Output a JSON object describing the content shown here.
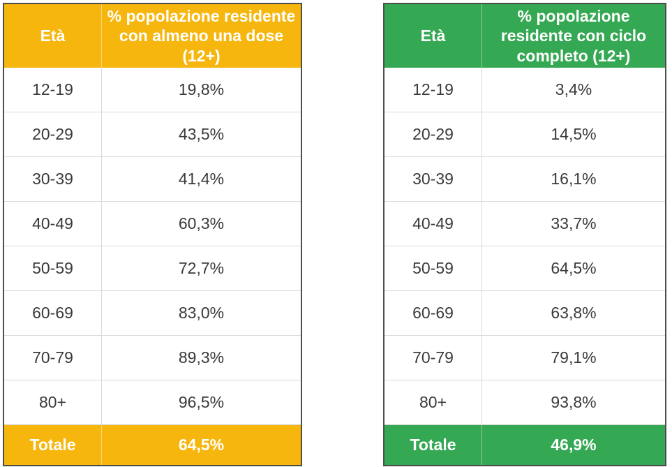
{
  "page": {
    "background": "#ffffff",
    "border_dark": "#4d4d4d",
    "grid_light": "#d9d9d9",
    "body_text": "#3a3a3a"
  },
  "tables": [
    {
      "name": "one-dose",
      "accent": "#F6B60D",
      "header": {
        "age_label": "Età",
        "value_label": "% popolazione residente con almeno una dose (12+)"
      },
      "rows": [
        {
          "age": "12-19",
          "value": "19,8%"
        },
        {
          "age": "20-29",
          "value": "43,5%"
        },
        {
          "age": "30-39",
          "value": "41,4%"
        },
        {
          "age": "40-49",
          "value": "60,3%"
        },
        {
          "age": "50-59",
          "value": "72,7%"
        },
        {
          "age": "60-69",
          "value": "83,0%"
        },
        {
          "age": "70-79",
          "value": "89,3%"
        },
        {
          "age": "80+",
          "value": "96,5%"
        }
      ],
      "footer": {
        "label": "Totale",
        "value": "64,5%"
      }
    },
    {
      "name": "full-cycle",
      "accent": "#35A853",
      "header": {
        "age_label": "Età",
        "value_label": "% popolazione residente con ciclo completo (12+)"
      },
      "rows": [
        {
          "age": "12-19",
          "value": "3,4%"
        },
        {
          "age": "20-29",
          "value": "14,5%"
        },
        {
          "age": "30-39",
          "value": "16,1%"
        },
        {
          "age": "40-49",
          "value": "33,7%"
        },
        {
          "age": "50-59",
          "value": "64,5%"
        },
        {
          "age": "60-69",
          "value": "63,8%"
        },
        {
          "age": "70-79",
          "value": "79,1%"
        },
        {
          "age": "80+",
          "value": "93,8%"
        }
      ],
      "footer": {
        "label": "Totale",
        "value": "46,9%"
      }
    }
  ],
  "chart_data": [
    {
      "type": "table",
      "title": "% popolazione residente con almeno una dose (12+)",
      "columns": [
        "Età",
        "% popolazione residente con almeno una dose (12+)"
      ],
      "categories": [
        "12-19",
        "20-29",
        "30-39",
        "40-49",
        "50-59",
        "60-69",
        "70-79",
        "80+",
        "Totale"
      ],
      "values": [
        19.8,
        43.5,
        41.4,
        60.3,
        72.7,
        83.0,
        89.3,
        96.5,
        64.5
      ],
      "value_unit": "%",
      "accent_color": "#F6B60D"
    },
    {
      "type": "table",
      "title": "% popolazione residente con ciclo completo (12+)",
      "columns": [
        "Età",
        "% popolazione residente con ciclo completo (12+)"
      ],
      "categories": [
        "12-19",
        "20-29",
        "30-39",
        "40-49",
        "50-59",
        "60-69",
        "70-79",
        "80+",
        "Totale"
      ],
      "values": [
        3.4,
        14.5,
        16.1,
        33.7,
        64.5,
        63.8,
        79.1,
        93.8,
        46.9
      ],
      "value_unit": "%",
      "accent_color": "#35A853"
    }
  ]
}
